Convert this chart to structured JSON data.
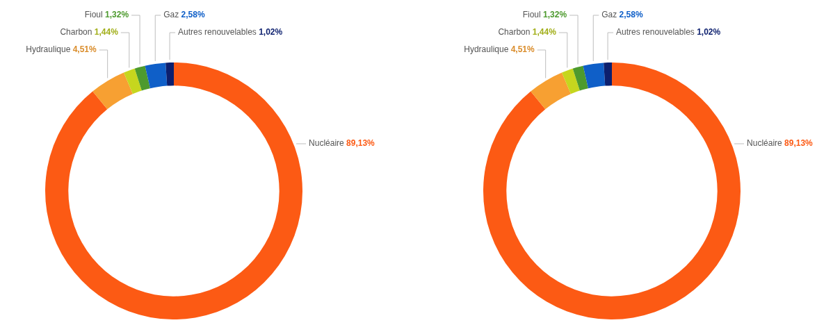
{
  "chart_data": [
    {
      "type": "donut",
      "categories": [
        "Nucléaire",
        "Hydraulique",
        "Charbon",
        "Fioul",
        "Gaz",
        "Autres renouvelables"
      ],
      "values": [
        89.13,
        4.51,
        1.44,
        1.32,
        2.58,
        1.02
      ],
      "colors": [
        "#fc5a14",
        "#f7a032",
        "#c6d61e",
        "#4d9a2e",
        "#0f5fc8",
        "#0c1f6e"
      ],
      "value_labels": [
        "89,13%",
        "4,51%",
        "1,44%",
        "1,32%",
        "2,58%",
        "1,02%"
      ],
      "legend": false
    },
    {
      "type": "donut",
      "categories": [
        "Nucléaire",
        "Hydraulique",
        "Charbon",
        "Fioul",
        "Gaz",
        "Autres renouvelables"
      ],
      "values": [
        89.13,
        4.51,
        1.44,
        1.32,
        2.58,
        1.02
      ],
      "colors": [
        "#fc5a14",
        "#f7a032",
        "#c6d61e",
        "#4d9a2e",
        "#0f5fc8",
        "#0c1f6e"
      ],
      "value_labels": [
        "89,13%",
        "4,51%",
        "1,44%",
        "1,32%",
        "2,58%",
        "1,02%"
      ],
      "legend": false
    }
  ]
}
